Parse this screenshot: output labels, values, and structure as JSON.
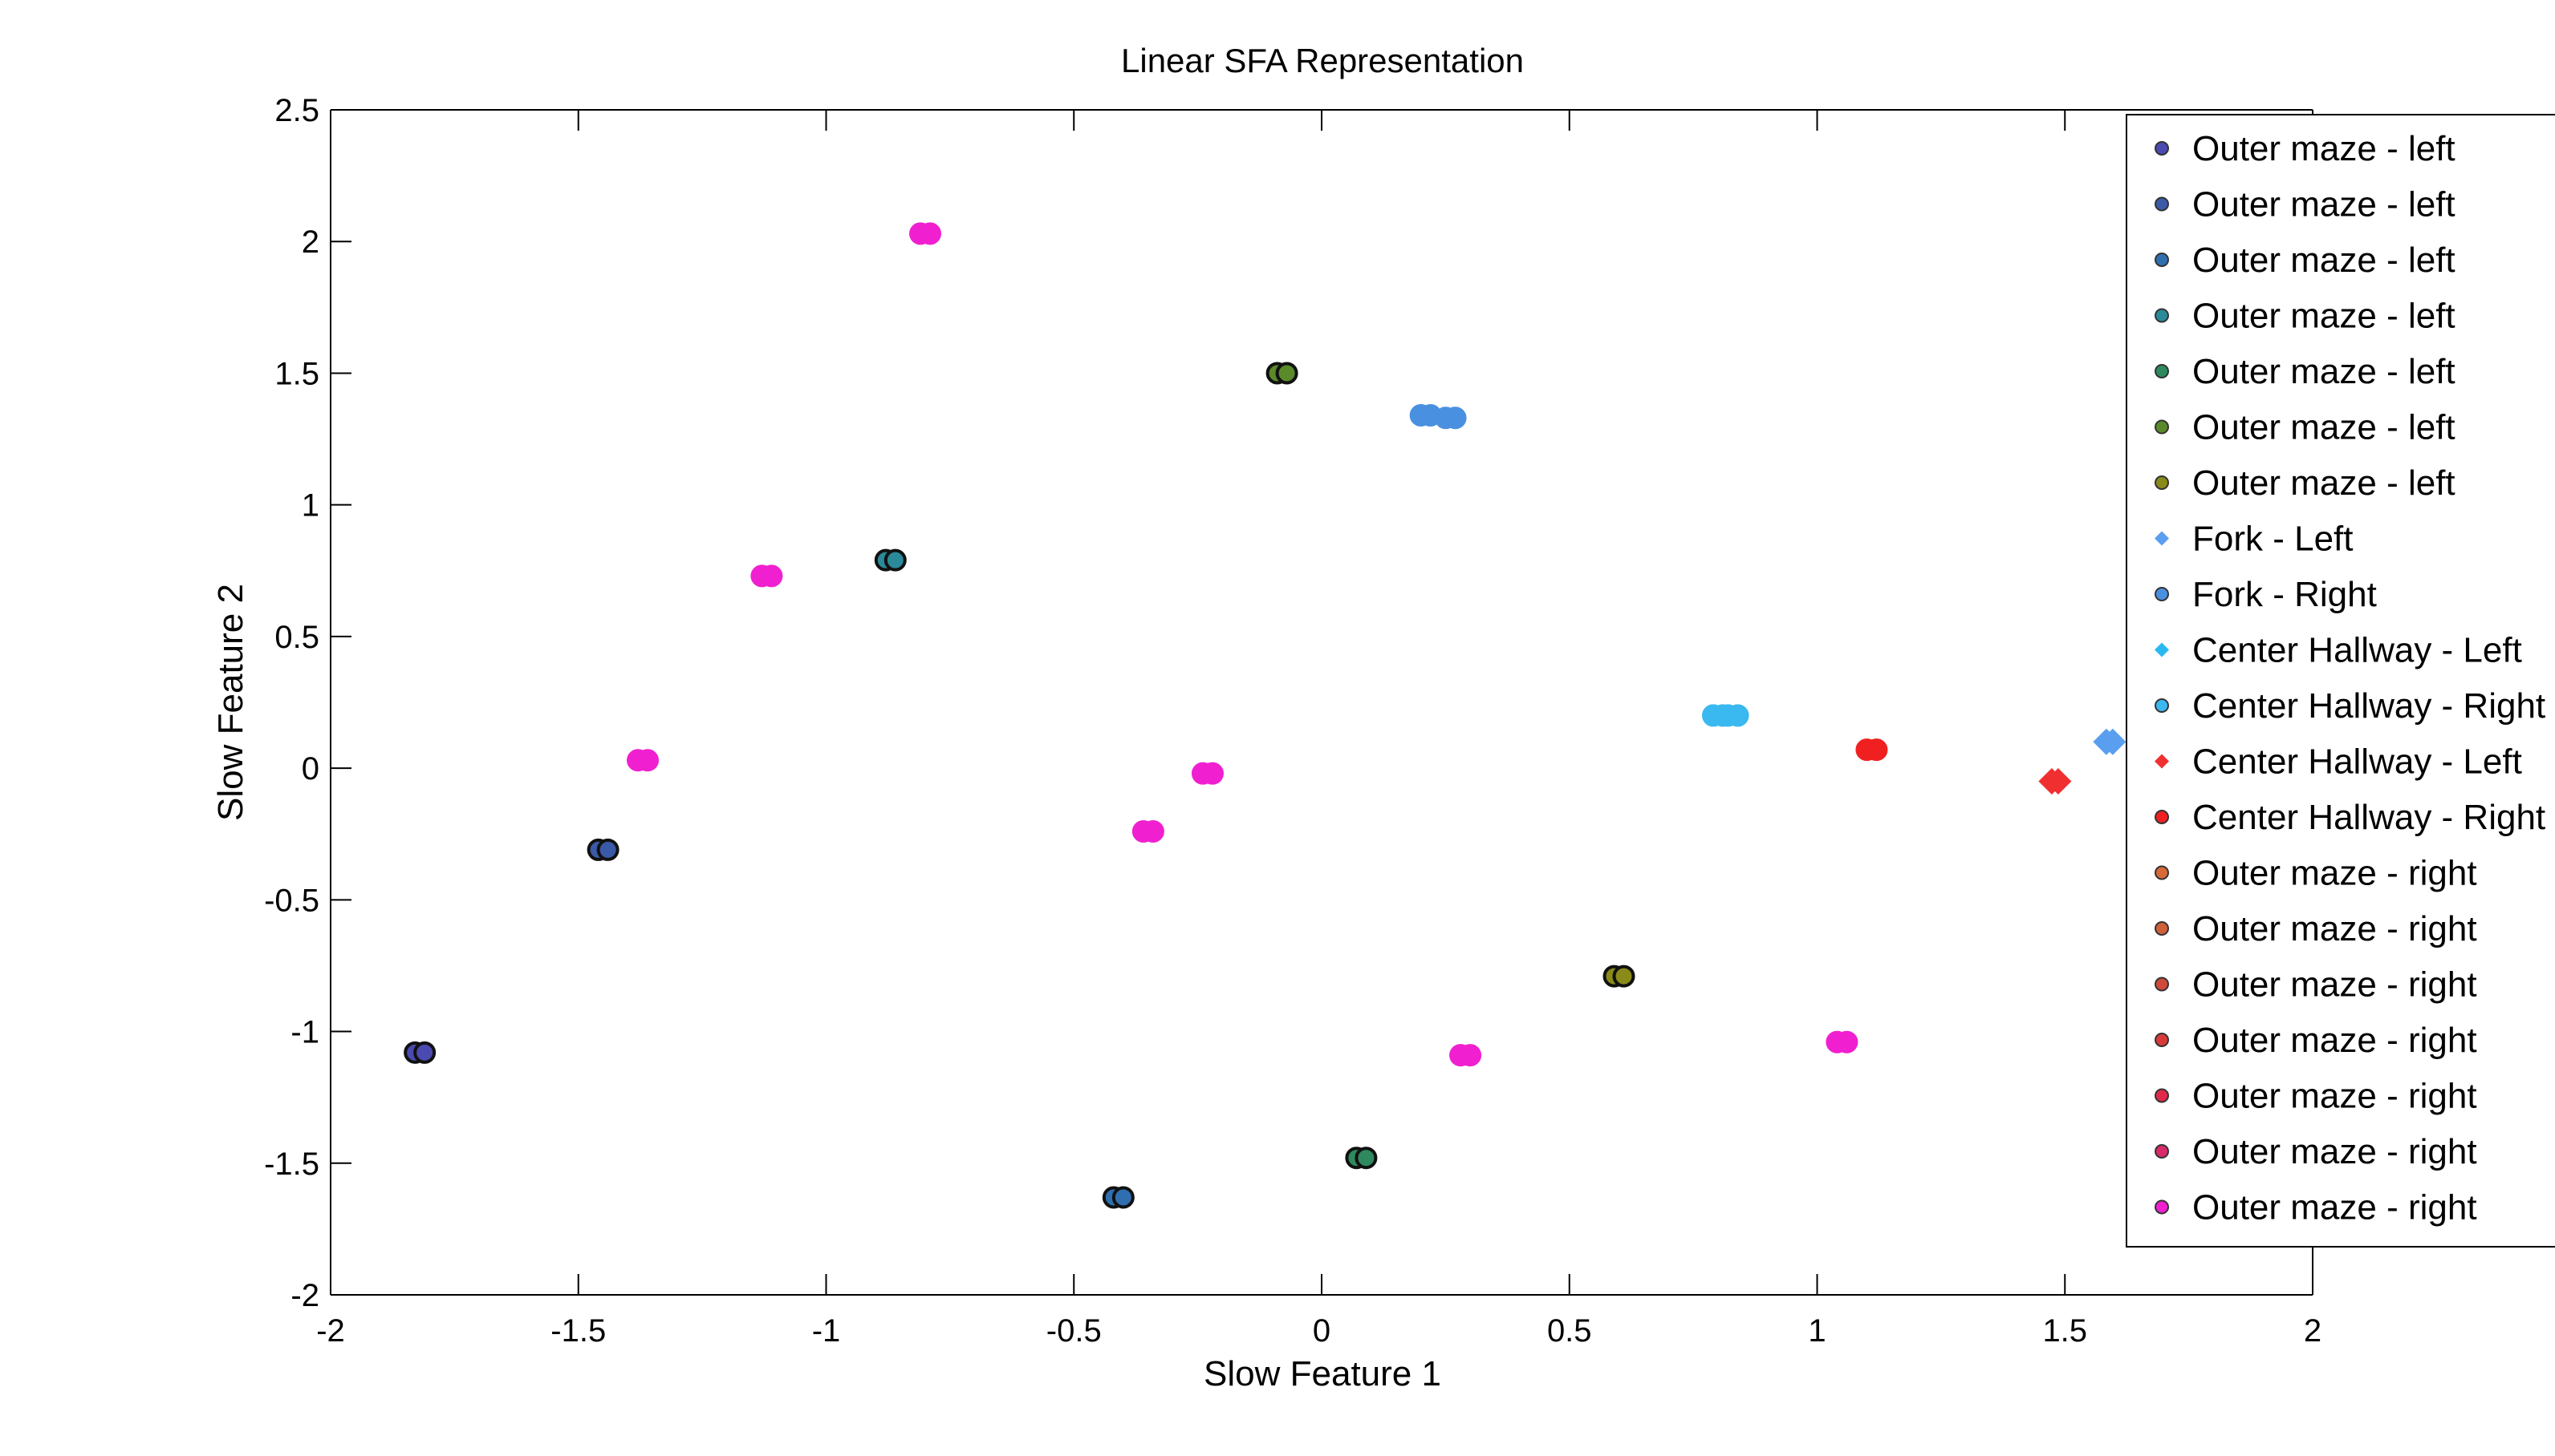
{
  "chart_data": {
    "type": "scatter",
    "title": "Linear SFA Representation",
    "xlabel": "Slow Feature 1",
    "ylabel": "Slow Feature 2",
    "xlim": [
      -2,
      2
    ],
    "ylim": [
      -2,
      2.5
    ],
    "xticks": [
      -2,
      -1.5,
      -1,
      -0.5,
      0,
      0.5,
      1,
      1.5,
      2
    ],
    "xtick_labels": [
      "-2",
      "-1.5",
      "-1",
      "-0.5",
      "0",
      "0.5",
      "1",
      "1.5",
      "2"
    ],
    "yticks": [
      2.5,
      2,
      1.5,
      1,
      0.5,
      0,
      -0.5,
      -1,
      -1.5,
      -2
    ],
    "ytick_labels": [
      "2.5",
      "2",
      "1.5",
      "1",
      "0.5",
      "0",
      "-0.5",
      "-1",
      "-1.5",
      "-2"
    ],
    "grid": false,
    "legend_position": "top-right",
    "series": [
      {
        "name": "Outer maze - left",
        "color": "#4a4ab0",
        "marker": "circle",
        "points": [
          [
            -1.82,
            -1.08
          ]
        ]
      },
      {
        "name": "Outer maze - left",
        "color": "#3a5aa8",
        "marker": "circle",
        "points": [
          [
            -1.45,
            -0.31
          ]
        ]
      },
      {
        "name": "Outer maze - left",
        "color": "#2f6fb0",
        "marker": "circle",
        "points": [
          [
            -0.41,
            -1.63
          ]
        ]
      },
      {
        "name": "Outer maze - left",
        "color": "#2a8a9a",
        "marker": "circle",
        "points": [
          [
            -0.87,
            0.79
          ]
        ]
      },
      {
        "name": "Outer maze - left",
        "color": "#2e8a5e",
        "marker": "circle",
        "points": [
          [
            0.08,
            -1.48
          ]
        ]
      },
      {
        "name": "Outer maze - left",
        "color": "#5a8a2a",
        "marker": "circle",
        "points": [
          [
            -0.08,
            1.5
          ]
        ]
      },
      {
        "name": "Outer maze - left",
        "color": "#8a8a1a",
        "marker": "circle",
        "points": [
          [
            0.6,
            -0.79
          ]
        ]
      },
      {
        "name": "Fork - Left",
        "color": "#5a9ef0",
        "marker": "diamond",
        "points": [
          [
            1.59,
            0.1
          ]
        ]
      },
      {
        "name": "Fork - Right",
        "color": "#4a90e0",
        "marker": "circle",
        "points": [
          [
            0.21,
            1.34
          ],
          [
            0.26,
            1.33
          ]
        ]
      },
      {
        "name": "Center Hallway - Left",
        "color": "#2ab8f0",
        "marker": "diamond",
        "points": []
      },
      {
        "name": "Center Hallway - Right",
        "color": "#3ab8f0",
        "marker": "circle",
        "points": [
          [
            0.8,
            0.2
          ],
          [
            0.83,
            0.2
          ]
        ]
      },
      {
        "name": "Center Hallway - Left",
        "color": "#f03030",
        "marker": "diamond",
        "points": [
          [
            1.48,
            -0.05
          ]
        ]
      },
      {
        "name": "Center Hallway - Right",
        "color": "#f02020",
        "marker": "circle",
        "points": [
          [
            1.11,
            0.07
          ]
        ]
      },
      {
        "name": "Outer maze - right",
        "color": "#d86a3a",
        "marker": "circle",
        "points": []
      },
      {
        "name": "Outer maze - right",
        "color": "#d0603a",
        "marker": "circle",
        "points": []
      },
      {
        "name": "Outer maze - right",
        "color": "#d04a3a",
        "marker": "circle",
        "points": []
      },
      {
        "name": "Outer maze - right",
        "color": "#d83a3a",
        "marker": "circle",
        "points": []
      },
      {
        "name": "Outer maze - right",
        "color": "#e02a4a",
        "marker": "circle",
        "points": []
      },
      {
        "name": "Outer maze - right",
        "color": "#d82a6a",
        "marker": "circle",
        "points": []
      },
      {
        "name": "Outer maze - right",
        "color": "#f020d0",
        "marker": "circle",
        "points": [
          [
            -0.8,
            2.03
          ],
          [
            -1.12,
            0.73
          ],
          [
            -1.37,
            0.03
          ],
          [
            -0.35,
            -0.24
          ],
          [
            -0.23,
            -0.02
          ],
          [
            0.29,
            -1.09
          ],
          [
            1.05,
            -1.04
          ]
        ]
      }
    ]
  }
}
